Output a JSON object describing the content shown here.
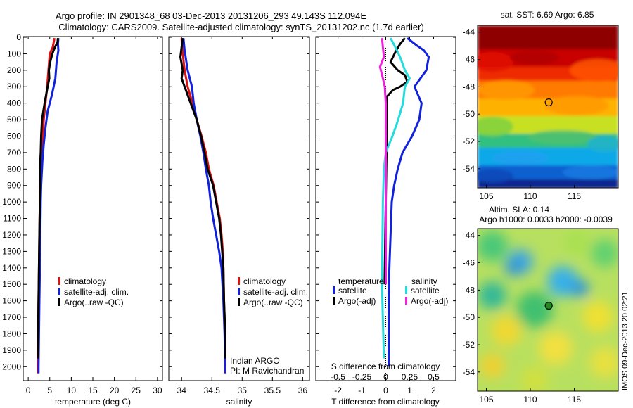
{
  "header": {
    "line1": "Argo profile: IN 2901348_68 03-Dec-2013 20131206_293 49.143S 112.094E",
    "line2": "Climatology: CARS2009. Satellite-adjusted climatology: synTS_20131202.nc (1.7d earlier)"
  },
  "colors": {
    "clim": "#dd1111",
    "sat": "#1122dd",
    "argo": "#000000",
    "sal_sat": "#22dddd",
    "sal_argo": "#ee22dd"
  },
  "chart_data": [
    {
      "type": "line",
      "xlabel": "temperature (deg C)",
      "ylabel": "",
      "xlim": [
        -1,
        31
      ],
      "ylim": [
        2080,
        0
      ],
      "xticks": [
        0,
        5,
        10,
        15,
        20,
        25,
        30
      ],
      "yticks": [
        0,
        100,
        200,
        300,
        400,
        500,
        600,
        700,
        800,
        900,
        1000,
        1100,
        1200,
        1300,
        1400,
        1500,
        1600,
        1700,
        1800,
        1900,
        2000
      ],
      "legend": [
        "climatology",
        "satellite-adj. clim.",
        "Argo(..raw -QC)"
      ],
      "series": [
        {
          "name": "climatology",
          "color": "#dd1111",
          "points": [
            [
              6.1,
              5
            ],
            [
              5.7,
              60
            ],
            [
              5.0,
              100
            ],
            [
              4.7,
              200
            ],
            [
              4.4,
              300
            ],
            [
              4.0,
              400
            ],
            [
              3.6,
              500
            ],
            [
              3.4,
              600
            ],
            [
              3.0,
              700
            ],
            [
              2.9,
              800
            ],
            [
              2.8,
              900
            ],
            [
              2.7,
              1000
            ],
            [
              2.6,
              1200
            ],
            [
              2.5,
              1400
            ],
            [
              2.4,
              1600
            ],
            [
              2.3,
              1800
            ],
            [
              2.2,
              2000
            ],
            [
              2.2,
              2040
            ]
          ]
        },
        {
          "name": "satellite-adj. clim.",
          "color": "#1122dd",
          "points": [
            [
              7.0,
              5
            ],
            [
              6.9,
              40
            ],
            [
              7.0,
              80
            ],
            [
              6.6,
              150
            ],
            [
              6.3,
              250
            ],
            [
              5.5,
              350
            ],
            [
              4.5,
              450
            ],
            [
              4.0,
              550
            ],
            [
              3.6,
              650
            ],
            [
              3.3,
              750
            ],
            [
              3.0,
              900
            ],
            [
              2.9,
              1000
            ],
            [
              2.8,
              1200
            ],
            [
              2.7,
              1400
            ],
            [
              2.6,
              1600
            ],
            [
              2.5,
              1800
            ],
            [
              2.4,
              2000
            ],
            [
              2.4,
              2040
            ]
          ]
        },
        {
          "name": "Argo(..raw -QC)",
          "color": "#000000",
          "points": [
            [
              6.9,
              5
            ],
            [
              6.8,
              30
            ],
            [
              6.2,
              60
            ],
            [
              5.6,
              100
            ],
            [
              5.1,
              150
            ],
            [
              4.8,
              200
            ],
            [
              4.9,
              250
            ],
            [
              4.5,
              300
            ],
            [
              3.8,
              400
            ],
            [
              3.2,
              500
            ],
            [
              3.0,
              600
            ],
            [
              2.9,
              700
            ],
            [
              2.7,
              800
            ],
            [
              2.8,
              900
            ],
            [
              2.7,
              1000
            ],
            [
              2.6,
              1200
            ],
            [
              2.5,
              1400
            ],
            [
              2.4,
              1600
            ],
            [
              2.3,
              1800
            ],
            [
              2.3,
              1950
            ]
          ]
        }
      ]
    },
    {
      "type": "line",
      "xlabel": "salinity",
      "ylabel": "",
      "xlim": [
        33.8,
        36.1
      ],
      "ylim": [
        2080,
        0
      ],
      "xticks": [
        34,
        34.5,
        35,
        35.5,
        36
      ],
      "legend": [
        "climatology",
        "satellite-adj. clim.",
        "Argo(..raw -QC)"
      ],
      "annotations": [
        "Indian ARGO",
        "PI: M Ravichandran"
      ],
      "series": [
        {
          "name": "climatology",
          "color": "#dd1111",
          "points": [
            [
              34.0,
              5
            ],
            [
              34.02,
              100
            ],
            [
              34.05,
              200
            ],
            [
              34.1,
              300
            ],
            [
              34.18,
              400
            ],
            [
              34.25,
              500
            ],
            [
              34.33,
              600
            ],
            [
              34.4,
              700
            ],
            [
              34.45,
              800
            ],
            [
              34.53,
              900
            ],
            [
              34.58,
              1000
            ],
            [
              34.63,
              1100
            ],
            [
              34.66,
              1200
            ],
            [
              34.68,
              1300
            ],
            [
              34.69,
              1400
            ],
            [
              34.7,
              1600
            ],
            [
              34.72,
              1800
            ],
            [
              34.72,
              2000
            ],
            [
              34.72,
              2040
            ]
          ]
        },
        {
          "name": "satellite-adj. clim.",
          "color": "#1122dd",
          "points": [
            [
              34.03,
              5
            ],
            [
              34.05,
              80
            ],
            [
              34.1,
              200
            ],
            [
              34.17,
              300
            ],
            [
              34.2,
              400
            ],
            [
              34.25,
              500
            ],
            [
              34.31,
              600
            ],
            [
              34.36,
              700
            ],
            [
              34.4,
              800
            ],
            [
              34.45,
              900
            ],
            [
              34.48,
              1000
            ],
            [
              34.52,
              1100
            ],
            [
              34.57,
              1200
            ],
            [
              34.62,
              1300
            ],
            [
              34.66,
              1400
            ],
            [
              34.69,
              1600
            ],
            [
              34.71,
              1800
            ],
            [
              34.72,
              2000
            ],
            [
              34.72,
              2040
            ]
          ]
        },
        {
          "name": "Argo(..raw -QC)",
          "color": "#000000",
          "points": [
            [
              34.02,
              5
            ],
            [
              34.0,
              60
            ],
            [
              33.98,
              120
            ],
            [
              34.0,
              160
            ],
            [
              34.02,
              200
            ],
            [
              34.0,
              250
            ],
            [
              34.05,
              300
            ],
            [
              34.15,
              400
            ],
            [
              34.25,
              500
            ],
            [
              34.32,
              600
            ],
            [
              34.38,
              700
            ],
            [
              34.43,
              800
            ],
            [
              34.52,
              900
            ],
            [
              34.57,
              1000
            ],
            [
              34.62,
              1100
            ],
            [
              34.65,
              1200
            ],
            [
              34.67,
              1300
            ],
            [
              34.69,
              1400
            ],
            [
              34.7,
              1600
            ],
            [
              34.72,
              1800
            ],
            [
              34.72,
              1950
            ]
          ]
        }
      ]
    },
    {
      "type": "line",
      "xlabel": "T difference from climatology",
      "x2label": "S difference from climatology",
      "xlim": [
        -2.9,
        2.9
      ],
      "x2lim": [
        -0.725,
        0.725
      ],
      "ylim": [
        2080,
        0
      ],
      "xticks": [
        -2,
        -1,
        0,
        1,
        2
      ],
      "x2ticks": [
        -0.5,
        -0.25,
        0,
        0.25,
        0.5
      ],
      "x2ticklabels": [
        "-0.5",
        "-0.25",
        "0",
        "0.25",
        "0.5"
      ],
      "legend_groups": [
        {
          "title": "temperature",
          "items": [
            "satellite",
            "Argo(-adj)"
          ]
        },
        {
          "title": "salinity",
          "items": [
            "satellite",
            "Argo(-adj)"
          ]
        }
      ],
      "series": [
        {
          "name": "temperature satellite",
          "axis": "T",
          "color": "#1122dd",
          "points": [
            [
              0.9,
              5
            ],
            [
              1.3,
              50
            ],
            [
              1.6,
              80
            ],
            [
              1.8,
              120
            ],
            [
              1.7,
              200
            ],
            [
              1.2,
              300
            ],
            [
              1.5,
              400
            ],
            [
              1.4,
              500
            ],
            [
              1.1,
              600
            ],
            [
              0.7,
              700
            ],
            [
              0.5,
              800
            ],
            [
              0.35,
              900
            ],
            [
              0.25,
              1000
            ],
            [
              0.2,
              1200
            ],
            [
              0.15,
              1400
            ],
            [
              0.12,
              1600
            ],
            [
              0.12,
              1800
            ],
            [
              0.12,
              2000
            ]
          ]
        },
        {
          "name": "temperature Argo(-adj)",
          "color": "#000000",
          "axis": "T",
          "points": [
            [
              0.8,
              5
            ],
            [
              0.6,
              40
            ],
            [
              0.4,
              90
            ],
            [
              0.2,
              150
            ],
            [
              0.5,
              200
            ],
            [
              0.8,
              230
            ],
            [
              0.9,
              270
            ],
            [
              0.6,
              300
            ],
            [
              0.3,
              320
            ],
            [
              0.05,
              360
            ],
            [
              0.05,
              500
            ],
            [
              0.0,
              1000
            ],
            [
              -0.05,
              1500
            ]
          ]
        },
        {
          "name": "salinity satellite",
          "color": "#22dddd",
          "axis": "S",
          "points": [
            [
              0.05,
              5
            ],
            [
              0.1,
              60
            ],
            [
              0.15,
              120
            ],
            [
              0.2,
              200
            ],
            [
              0.25,
              250
            ],
            [
              0.2,
              300
            ],
            [
              0.18,
              400
            ],
            [
              0.13,
              500
            ],
            [
              0.07,
              600
            ],
            [
              0.0,
              700
            ],
            [
              -0.02,
              800
            ],
            [
              -0.03,
              1000
            ],
            [
              -0.04,
              1500
            ],
            [
              -0.02,
              1950
            ]
          ]
        },
        {
          "name": "salinity Argo(-adj)",
          "color": "#ee22dd",
          "axis": "S",
          "points": [
            [
              -0.04,
              5
            ],
            [
              -0.03,
              60
            ],
            [
              -0.02,
              120
            ],
            [
              -0.06,
              180
            ],
            [
              -0.03,
              250
            ],
            [
              -0.01,
              300
            ],
            [
              0.0,
              400
            ],
            [
              0.0,
              700
            ],
            [
              0.0,
              1000
            ],
            [
              0.0,
              1500
            ]
          ]
        }
      ]
    },
    {
      "type": "heatmap",
      "title": "sat. SST: 6.69 Argo: 6.85",
      "xlim": [
        104,
        120
      ],
      "ylim": [
        -55.4,
        -43.5
      ],
      "xticks": [
        105,
        110,
        115
      ],
      "yticks": [
        -44,
        -46,
        -48,
        -50,
        -52,
        -54
      ],
      "profile_marker": {
        "lon": 112.094,
        "lat": -49.143
      }
    },
    {
      "type": "heatmap",
      "title": "Altim. SLA: 0.14",
      "subtitle": "Argo h1000: 0.0033 h2000: -0.0039",
      "xlim": [
        104,
        120
      ],
      "ylim": [
        -55.4,
        -43.5
      ],
      "xticks": [
        105,
        110,
        115
      ],
      "yticks": [
        -44,
        -46,
        -48,
        -50,
        -52,
        -54
      ],
      "profile_marker": {
        "lon": 112.094,
        "lat": -49.143
      }
    }
  ],
  "stamp": "IMOS 09-Dec-2013 20:02:21"
}
